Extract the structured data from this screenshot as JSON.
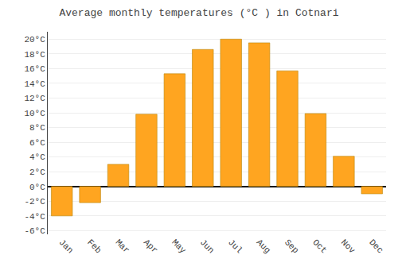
{
  "chart_data": {
    "type": "bar",
    "title": "Average monthly temperatures (°C ) in Cotnari",
    "categories": [
      "Jan",
      "Feb",
      "Mar",
      "Apr",
      "May",
      "Jun",
      "Jul",
      "Aug",
      "Sep",
      "Oct",
      "Nov",
      "Dec"
    ],
    "values": [
      -4.0,
      -2.2,
      3.0,
      9.8,
      15.3,
      18.6,
      20.0,
      19.5,
      15.7,
      9.9,
      4.1,
      -1.0
    ],
    "color": "#FFA520",
    "ylim": [
      -6.5,
      21
    ],
    "yticks": [
      {
        "value": -6,
        "label": "-6°C"
      },
      {
        "value": -4,
        "label": "-4°C"
      },
      {
        "value": -2,
        "label": "-2°C"
      },
      {
        "value": 0,
        "label": "0°C"
      },
      {
        "value": 2,
        "label": "2°C"
      },
      {
        "value": 4,
        "label": "4°C"
      },
      {
        "value": 6,
        "label": "6°C"
      },
      {
        "value": 8,
        "label": "8°C"
      },
      {
        "value": 10,
        "label": "10°C"
      },
      {
        "value": 12,
        "label": "12°C"
      },
      {
        "value": 14,
        "label": "14°C"
      },
      {
        "value": 16,
        "label": "16°C"
      },
      {
        "value": 18,
        "label": "18°C"
      },
      {
        "value": 20,
        "label": "20°C"
      }
    ],
    "grid": true
  }
}
